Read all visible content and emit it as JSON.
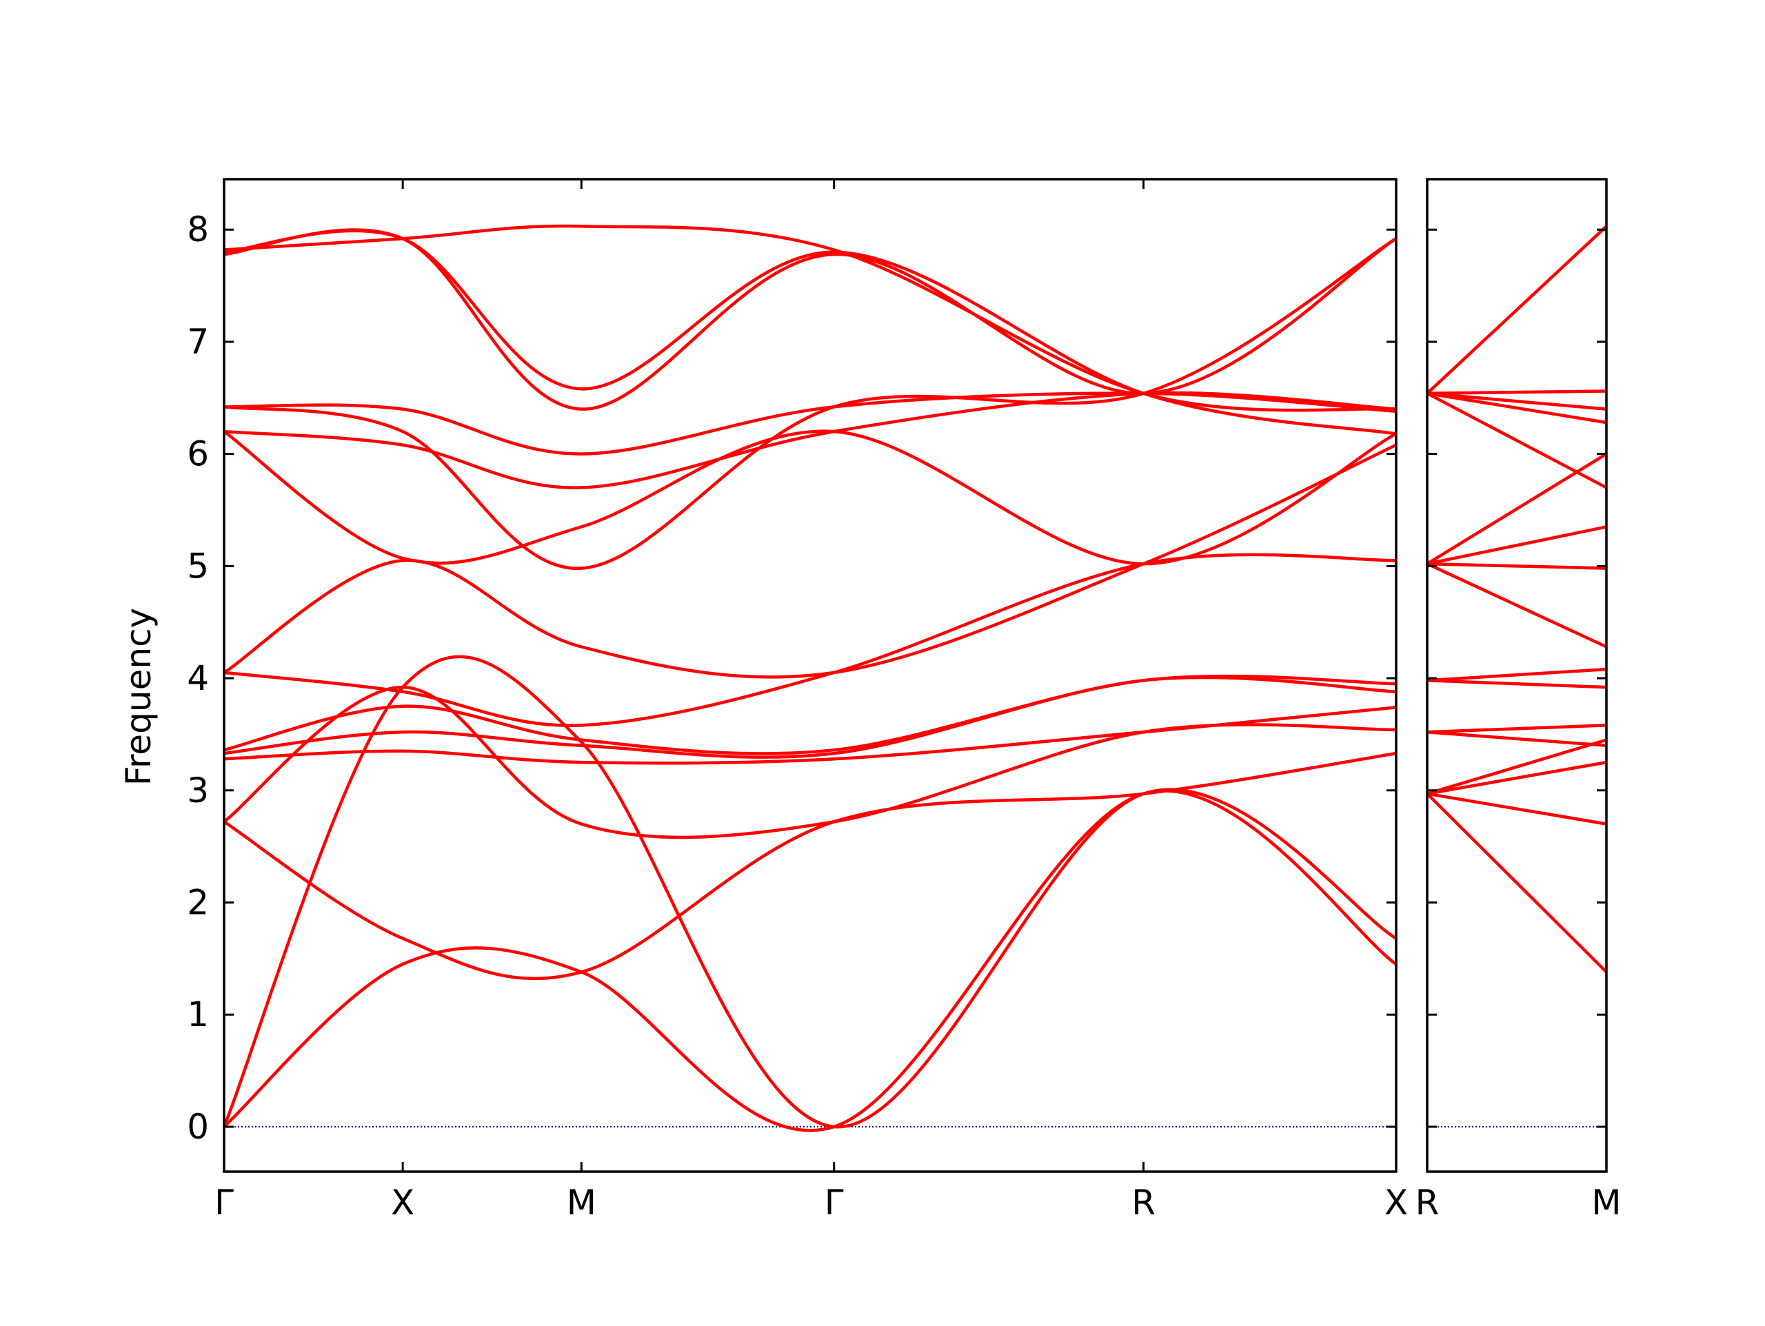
{
  "chart_data": {
    "type": "line",
    "ylabel": "Frequency",
    "ylim": [
      -0.4,
      8.45
    ],
    "yticks": [
      "0",
      "1",
      "2",
      "3",
      "4",
      "5",
      "6",
      "7",
      "8"
    ],
    "zero_line": true,
    "colors": {
      "bands": "#ff0000",
      "zero": "#0000aa",
      "axes": "#000000"
    },
    "panels": [
      {
        "name": "Γ-X-M-Γ-R-X",
        "xticks": [
          "Γ",
          "X",
          "M",
          "Γ",
          "R",
          "X"
        ],
        "segment_lengths": [
          0.5,
          0.5,
          0.707,
          0.866,
          0.707
        ],
        "series": [
          {
            "x": [
              0,
              0.5,
              1.0,
              1.707,
              2.573,
              3.28
            ],
            "y": [
              0.0,
              1.45,
              1.38,
              0.0,
              2.97,
              1.45
            ]
          },
          {
            "x": [
              0,
              0.5,
              1.0,
              1.707,
              2.573,
              3.28
            ],
            "y": [
              0.0,
              3.92,
              3.43,
              0.0,
              2.97,
              1.68
            ]
          },
          {
            "x": [
              0,
              0.5,
              1.0,
              1.707,
              2.573,
              3.28
            ],
            "y": [
              2.72,
              1.68,
              1.38,
              2.72,
              2.97,
              3.33
            ]
          },
          {
            "x": [
              0,
              0.5,
              1.0,
              1.707,
              2.573,
              3.28
            ],
            "y": [
              2.72,
              3.92,
              2.7,
              2.72,
              3.52,
              3.54
            ]
          },
          {
            "x": [
              0,
              0.5,
              1.0,
              1.707,
              2.573,
              3.28
            ],
            "y": [
              3.28,
              3.35,
              3.25,
              3.28,
              3.52,
              3.74
            ]
          },
          {
            "x": [
              0,
              0.5,
              1.0,
              1.707,
              2.573,
              3.28
            ],
            "y": [
              3.33,
              3.52,
              3.4,
              3.33,
              3.98,
              3.88
            ]
          },
          {
            "x": [
              0,
              0.5,
              1.0,
              1.707,
              2.573,
              3.28
            ],
            "y": [
              3.36,
              3.75,
              3.45,
              3.36,
              3.98,
              3.95
            ]
          },
          {
            "x": [
              0,
              0.5,
              1.0,
              1.707,
              2.573,
              3.28
            ],
            "y": [
              4.05,
              3.88,
              3.58,
              4.05,
              5.02,
              5.05
            ]
          },
          {
            "x": [
              0,
              0.5,
              1.0,
              1.707,
              2.573,
              3.28
            ],
            "y": [
              4.05,
              5.05,
              4.28,
              4.05,
              5.02,
              6.08
            ]
          },
          {
            "x": [
              0,
              0.5,
              1.0,
              1.707,
              2.573,
              3.28
            ],
            "y": [
              6.2,
              5.07,
              5.35,
              6.2,
              5.02,
              6.18
            ]
          },
          {
            "x": [
              0,
              0.5,
              1.0,
              1.707,
              2.573,
              3.28
            ],
            "y": [
              6.2,
              6.08,
              5.7,
              6.2,
              6.54,
              6.4
            ]
          },
          {
            "x": [
              0,
              0.5,
              1.0,
              1.707,
              2.573,
              3.28
            ],
            "y": [
              6.42,
              6.2,
              4.98,
              6.42,
              6.54,
              7.92
            ]
          },
          {
            "x": [
              0,
              0.5,
              1.0,
              1.707,
              2.573,
              3.28
            ],
            "y": [
              6.42,
              6.4,
              6.0,
              6.42,
              6.54,
              6.38
            ]
          },
          {
            "x": [
              0,
              0.5,
              1.0,
              1.707,
              2.573,
              3.28
            ],
            "y": [
              7.78,
              7.92,
              6.4,
              7.78,
              6.54,
              7.92
            ]
          },
          {
            "x": [
              0,
              0.5,
              1.0,
              1.707,
              2.573,
              3.28
            ],
            "y": [
              7.8,
              7.92,
              6.58,
              7.8,
              6.54,
              6.18
            ]
          },
          {
            "x": [
              0,
              0.5,
              1.0,
              1.707,
              2.573,
              3.28
            ],
            "y": [
              7.82,
              7.92,
              8.03,
              7.82,
              6.54,
              6.4
            ]
          }
        ]
      },
      {
        "name": "R-M",
        "xticks": [
          "R",
          "M"
        ],
        "segment_lengths": [
          0.5
        ],
        "series": [
          {
            "x": [
              0,
              0.5
            ],
            "y": [
              2.97,
              1.38
            ]
          },
          {
            "x": [
              0,
              0.5
            ],
            "y": [
              2.97,
              2.7
            ]
          },
          {
            "x": [
              0,
              0.5
            ],
            "y": [
              2.97,
              3.25
            ]
          },
          {
            "x": [
              0,
              0.5
            ],
            "y": [
              2.97,
              3.45
            ]
          },
          {
            "x": [
              0,
              0.5
            ],
            "y": [
              3.52,
              3.4
            ]
          },
          {
            "x": [
              0,
              0.5
            ],
            "y": [
              3.52,
              3.58
            ]
          },
          {
            "x": [
              0,
              0.5
            ],
            "y": [
              3.98,
              3.92
            ]
          },
          {
            "x": [
              0,
              0.5
            ],
            "y": [
              3.98,
              4.08
            ]
          },
          {
            "x": [
              0,
              0.5
            ],
            "y": [
              5.02,
              4.28
            ]
          },
          {
            "x": [
              0,
              0.5
            ],
            "y": [
              5.02,
              4.98
            ]
          },
          {
            "x": [
              0,
              0.5
            ],
            "y": [
              5.02,
              5.35
            ]
          },
          {
            "x": [
              0,
              0.5
            ],
            "y": [
              5.02,
              6.0
            ]
          },
          {
            "x": [
              0,
              0.5
            ],
            "y": [
              6.54,
              5.7
            ]
          },
          {
            "x": [
              0,
              0.5
            ],
            "y": [
              6.54,
              6.28
            ]
          },
          {
            "x": [
              0,
              0.5
            ],
            "y": [
              6.54,
              6.4
            ]
          },
          {
            "x": [
              0,
              0.5
            ],
            "y": [
              6.54,
              6.56
            ]
          },
          {
            "x": [
              0,
              0.5
            ],
            "y": [
              6.54,
              8.03
            ]
          }
        ]
      }
    ]
  }
}
